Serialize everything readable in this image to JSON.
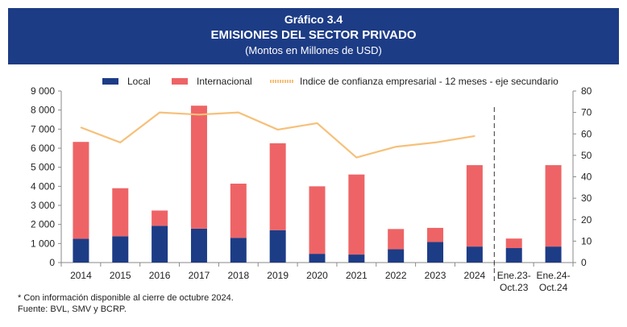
{
  "header": {
    "label": "Gráfico 3.4",
    "title": "EMISIONES DEL SECTOR PRIVADO",
    "subtitle": "(Montos en Millones de USD)"
  },
  "colors": {
    "header_bg": "#1d3c86",
    "local": "#1d3c86",
    "internacional": "#ee6466",
    "indice": "#f6c07a"
  },
  "chart_data": {
    "type": "bar",
    "stacked": true,
    "categories": [
      "2014",
      "2015",
      "2016",
      "2017",
      "2018",
      "2019",
      "2020",
      "2021",
      "2022",
      "2023",
      "2024",
      "Ene.23-\nOct.23",
      "Ene.24-\nOct.24"
    ],
    "series": [
      {
        "name": "Local",
        "values": [
          1250,
          1380,
          1930,
          1780,
          1300,
          1700,
          460,
          420,
          700,
          1080,
          840,
          760,
          840
        ]
      },
      {
        "name": "Internacional",
        "values": [
          5080,
          2520,
          800,
          6450,
          2840,
          4560,
          3540,
          4200,
          1060,
          740,
          4270,
          500,
          4270
        ]
      }
    ],
    "line_series": {
      "name": "Indice de confianza empresarial - 12 meses - eje secundario",
      "axis": "secondary",
      "values": [
        63,
        56,
        70,
        69,
        70,
        62,
        65,
        49,
        54,
        56,
        59
      ]
    },
    "ylim": [
      0,
      9000
    ],
    "yticks": [
      "0",
      "1 000",
      "2 000",
      "3 000",
      "4 000",
      "5 000",
      "6 000",
      "7 000",
      "8 000",
      "9 000"
    ],
    "y2lim": [
      0,
      80
    ],
    "y2ticks": [
      "0",
      "10",
      "20",
      "30",
      "40",
      "50",
      "60",
      "70",
      "80"
    ],
    "legend_position": "top",
    "separator_after_index": 10
  },
  "footnotes": {
    "note": "* Con información disponible al cierre de octubre 2024.",
    "source": "Fuente: BVL, SMV y BCRP."
  }
}
